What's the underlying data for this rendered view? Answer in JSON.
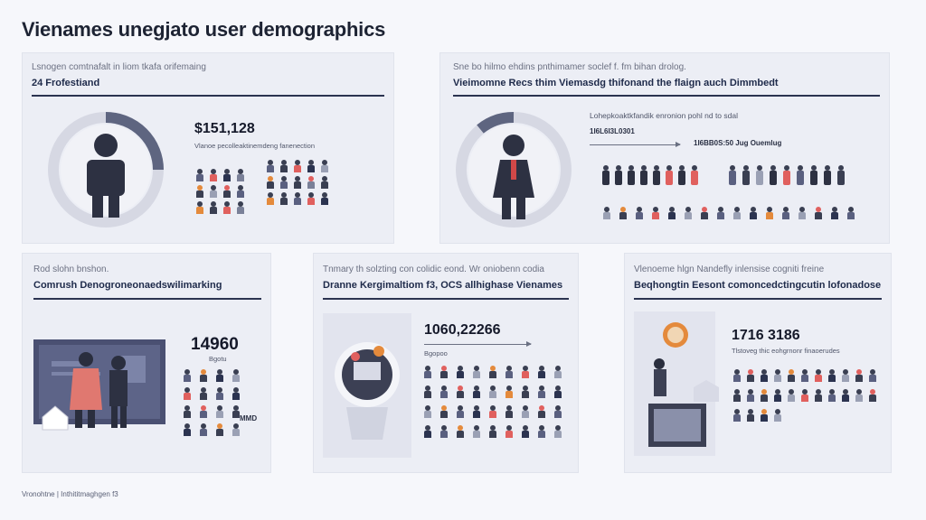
{
  "page": {
    "title": "Vienames unegjato user demographics",
    "footer": "Vronohtne | Inthititmaghgen f3"
  },
  "cards": {
    "c1": {
      "subtitle": "Lsnogen comtnafalt in liom tkafa orifemaing",
      "heading": "24 Frofestiand",
      "stat": "$151,128",
      "caption": "Vlanoe pecolleaktinemdeng fanenection"
    },
    "c2": {
      "subtitle": "Sne bo hilmo ehdins pnthimamer soclef f. fm bihan drolog.",
      "heading": "Vieimomne Recs thim Viemasdg thifonand the flaign auch Dimmbedt",
      "top_caption": "Lohepkoaktkfandik enronion pohl nd to sdal",
      "mini_left": "1I6L6I3L0301",
      "mini_right": "1I6BB0S:50 Jug Ouemlug"
    },
    "c3": {
      "subtitle": "Rod slohn bnshon.",
      "heading": "Comrush Denogroneonaedswilimarking",
      "stat": "14960",
      "caption": "Bgotu",
      "tag": "MMD"
    },
    "c4": {
      "subtitle": "Tnmary th solzting con colidic eond. Wr oniobenn codia",
      "heading": "Dranne Kergimaltiom f3, OCS allhighase Vienames",
      "stat": "1060,22266",
      "caption": "Bgopoo"
    },
    "c5": {
      "subtitle": "Vlenoeme hlgn Nandefly inlensise cogniti freine",
      "heading": "Beqhongtin Eesont comoncedctingcutin lofonadose",
      "stat": "1716 3186",
      "caption": "Tlstoveg thic eohgrnonr finaoerudes"
    }
  },
  "colors": {
    "accent_red": "#e0605e",
    "accent_orange": "#e48a3c",
    "navy": "#2b3350",
    "ring": "#d4d6e2",
    "ring_dark": "#5e6580"
  },
  "icons": [
    "user-avatar-icon",
    "person-icon",
    "group-icon",
    "camera-icon",
    "gear-icon",
    "medal-icon",
    "map-icon",
    "chart-icon"
  ]
}
